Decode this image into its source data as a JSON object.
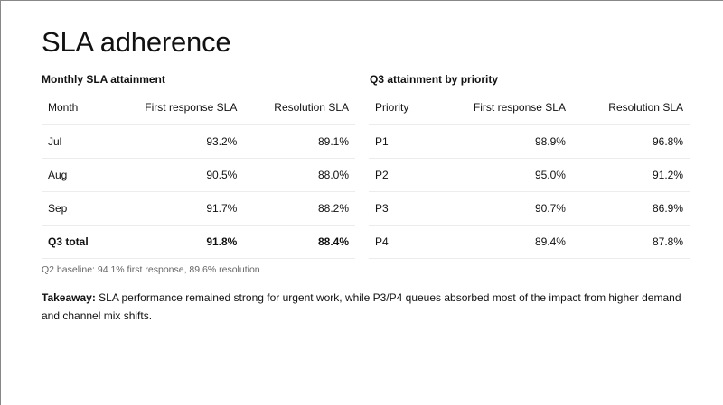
{
  "title": "SLA adherence",
  "monthly": {
    "heading": "Monthly SLA attainment",
    "columns": [
      "Month",
      "First response SLA",
      "Resolution SLA"
    ],
    "rows": [
      [
        "Jul",
        "93.2%",
        "89.1%"
      ],
      [
        "Aug",
        "90.5%",
        "88.0%"
      ],
      [
        "Sep",
        "91.7%",
        "88.2%"
      ],
      [
        "Q3 total",
        "91.8%",
        "88.4%"
      ]
    ]
  },
  "priority": {
    "heading": "Q3 attainment by priority",
    "columns": [
      "Priority",
      "First response SLA",
      "Resolution SLA"
    ],
    "rows": [
      [
        "P1",
        "98.9%",
        "96.8%"
      ],
      [
        "P2",
        "95.0%",
        "91.2%"
      ],
      [
        "P3",
        "90.7%",
        "86.9%"
      ],
      [
        "P4",
        "89.4%",
        "87.8%"
      ]
    ]
  },
  "note": "Q2 baseline: 94.1% first response, 89.6% resolution",
  "takeaway": {
    "label": "Takeaway:",
    "text": " SLA performance remained strong for urgent work, while P3/P4 queues absorbed most of the impact from higher demand and channel mix shifts."
  }
}
